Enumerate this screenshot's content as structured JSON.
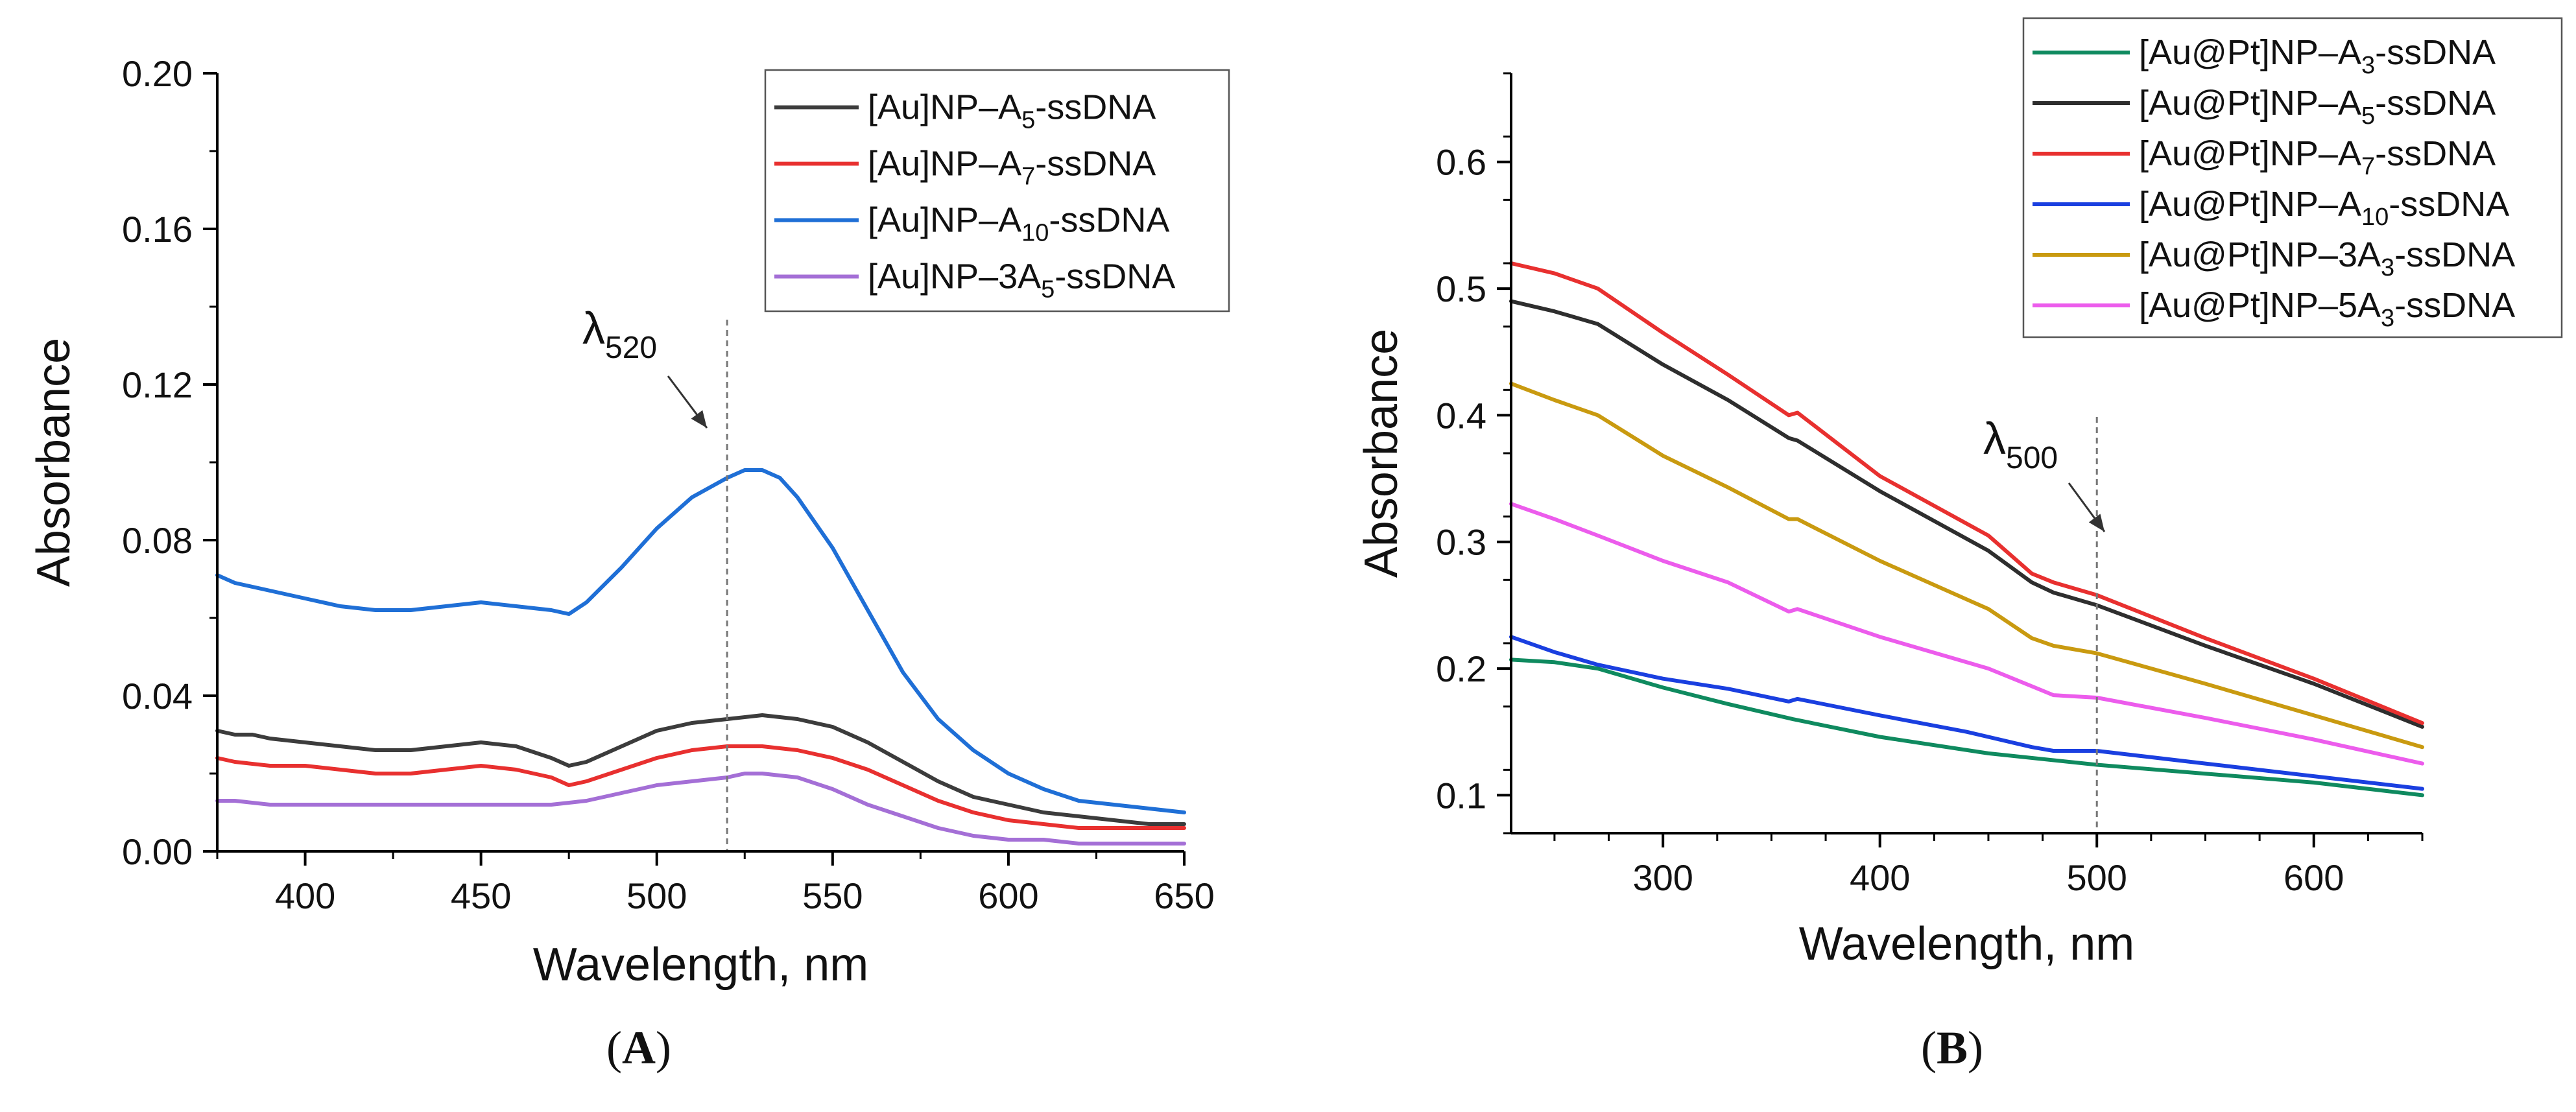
{
  "charts": {
    "A": {
      "panel_label": "A",
      "xlabel": "Wavelength, nm",
      "ylabel": "Absorbance",
      "annotation": {
        "symbol": "λ",
        "sub": "520"
      }
    },
    "B": {
      "panel_label": "B",
      "xlabel": "Wavelength, nm",
      "ylabel": "Absorbance",
      "annotation": {
        "symbol": "λ",
        "sub": "500"
      }
    }
  },
  "chart_data": [
    {
      "id": "A",
      "type": "line",
      "title": "",
      "xlabel": "Wavelength, nm",
      "ylabel": "Absorbance",
      "xlim": [
        375,
        650
      ],
      "ylim": [
        0,
        0.2
      ],
      "xticks": [
        400,
        450,
        500,
        550,
        600,
        650
      ],
      "yticks": [
        0.0,
        0.04,
        0.08,
        0.12,
        0.16,
        0.2
      ],
      "xtick_labels": [
        "400",
        "450",
        "500",
        "550",
        "600",
        "650"
      ],
      "ytick_labels": [
        "0.00",
        "0.04",
        "0.08",
        "0.12",
        "0.16",
        "0.20"
      ],
      "legend_position": "top-right",
      "marker_line_x": 520,
      "annotation_text": "λ520",
      "series": [
        {
          "name": "[Au]NP–A5-ssDNA",
          "label_main": "[Au]NP–A",
          "label_sub": "5",
          "label_end": "-ssDNA",
          "color": "#3c3c3c",
          "x": [
            375,
            380,
            385,
            390,
            400,
            410,
            420,
            430,
            440,
            450,
            460,
            470,
            475,
            480,
            490,
            500,
            510,
            520,
            530,
            540,
            550,
            560,
            570,
            580,
            590,
            600,
            610,
            620,
            630,
            640,
            650
          ],
          "y": [
            0.031,
            0.03,
            0.03,
            0.029,
            0.028,
            0.027,
            0.026,
            0.026,
            0.027,
            0.028,
            0.027,
            0.024,
            0.022,
            0.023,
            0.027,
            0.031,
            0.033,
            0.034,
            0.035,
            0.034,
            0.032,
            0.028,
            0.023,
            0.018,
            0.014,
            0.012,
            0.01,
            0.009,
            0.008,
            0.007,
            0.007
          ]
        },
        {
          "name": "[Au]NP–A7-ssDNA",
          "label_main": "[Au]NP–A",
          "label_sub": "7",
          "label_end": "-ssDNA",
          "color": "#e8302f",
          "x": [
            375,
            380,
            390,
            400,
            410,
            420,
            430,
            440,
            450,
            460,
            470,
            475,
            480,
            490,
            500,
            510,
            520,
            530,
            540,
            550,
            560,
            570,
            580,
            590,
            600,
            610,
            620,
            630,
            640,
            650
          ],
          "y": [
            0.024,
            0.023,
            0.022,
            0.022,
            0.021,
            0.02,
            0.02,
            0.021,
            0.022,
            0.021,
            0.019,
            0.017,
            0.018,
            0.021,
            0.024,
            0.026,
            0.027,
            0.027,
            0.026,
            0.024,
            0.021,
            0.017,
            0.013,
            0.01,
            0.008,
            0.007,
            0.006,
            0.006,
            0.006,
            0.006
          ]
        },
        {
          "name": "[Au]NP–A10-ssDNA",
          "label_main": "[Au]NP–A",
          "label_sub": "10",
          "label_end": "-ssDNA",
          "color": "#1f6fd6",
          "x": [
            375,
            380,
            390,
            400,
            410,
            420,
            430,
            440,
            450,
            460,
            470,
            475,
            480,
            490,
            500,
            510,
            520,
            525,
            530,
            535,
            540,
            550,
            560,
            570,
            580,
            590,
            600,
            610,
            620,
            630,
            640,
            650
          ],
          "y": [
            0.071,
            0.069,
            0.067,
            0.065,
            0.063,
            0.062,
            0.062,
            0.063,
            0.064,
            0.063,
            0.062,
            0.061,
            0.064,
            0.073,
            0.083,
            0.091,
            0.096,
            0.098,
            0.098,
            0.096,
            0.091,
            0.078,
            0.062,
            0.046,
            0.034,
            0.026,
            0.02,
            0.016,
            0.013,
            0.012,
            0.011,
            0.01
          ]
        },
        {
          "name": "[Au]NP–3A5-ssDNA",
          "label_main": "[Au]NP–3A",
          "label_sub": "5",
          "label_end": "-ssDNA",
          "color": "#a46fd6",
          "x": [
            375,
            380,
            390,
            400,
            410,
            420,
            430,
            440,
            450,
            460,
            470,
            480,
            490,
            500,
            510,
            520,
            525,
            530,
            540,
            550,
            560,
            570,
            580,
            590,
            600,
            610,
            620,
            630,
            640,
            650
          ],
          "y": [
            0.013,
            0.013,
            0.012,
            0.012,
            0.012,
            0.012,
            0.012,
            0.012,
            0.012,
            0.012,
            0.012,
            0.013,
            0.015,
            0.017,
            0.018,
            0.019,
            0.02,
            0.02,
            0.019,
            0.016,
            0.012,
            0.009,
            0.006,
            0.004,
            0.003,
            0.003,
            0.002,
            0.002,
            0.002,
            0.002
          ]
        }
      ]
    },
    {
      "id": "B",
      "type": "line",
      "title": "",
      "xlabel": "Wavelength, nm",
      "ylabel": "Absorbance",
      "xlim": [
        230,
        650
      ],
      "ylim": [
        0.07,
        0.67
      ],
      "xticks": [
        300,
        400,
        500,
        600
      ],
      "yticks": [
        0.1,
        0.2,
        0.3,
        0.4,
        0.5,
        0.6
      ],
      "xtick_labels": [
        "300",
        "400",
        "500",
        "600"
      ],
      "ytick_labels": [
        "0.1",
        "0.2",
        "0.3",
        "0.4",
        "0.5",
        "0.6"
      ],
      "legend_position": "top-right",
      "marker_line_x": 500,
      "annotation_text": "λ500",
      "series": [
        {
          "name": "[Au@Pt]NP–A3-ssDNA",
          "label_main": "[Au@Pt]NP–A",
          "label_sub": "3",
          "label_end": "-ssDNA",
          "color": "#0f8a5f",
          "x": [
            230,
            250,
            270,
            300,
            330,
            360,
            400,
            450,
            500,
            550,
            600,
            650
          ],
          "y": [
            0.207,
            0.205,
            0.2,
            0.185,
            0.172,
            0.16,
            0.146,
            0.133,
            0.124,
            0.117,
            0.11,
            0.1
          ]
        },
        {
          "name": "[Au@Pt]NP–A5-ssDNA",
          "label_main": "[Au@Pt]NP–A",
          "label_sub": "5",
          "label_end": "-ssDNA",
          "color": "#2e2e2e",
          "x": [
            230,
            250,
            270,
            300,
            330,
            358,
            362,
            400,
            450,
            470,
            480,
            500,
            550,
            600,
            650
          ],
          "y": [
            0.49,
            0.482,
            0.472,
            0.44,
            0.412,
            0.382,
            0.38,
            0.34,
            0.293,
            0.268,
            0.26,
            0.25,
            0.218,
            0.188,
            0.154
          ]
        },
        {
          "name": "[Au@Pt]NP–A7-ssDNA",
          "label_main": "[Au@Pt]NP–A",
          "label_sub": "7",
          "label_end": "-ssDNA",
          "color": "#e8302f",
          "x": [
            230,
            250,
            270,
            300,
            330,
            358,
            362,
            400,
            450,
            470,
            480,
            500,
            550,
            600,
            650
          ],
          "y": [
            0.52,
            0.512,
            0.5,
            0.465,
            0.432,
            0.4,
            0.402,
            0.352,
            0.305,
            0.275,
            0.268,
            0.258,
            0.224,
            0.192,
            0.157
          ]
        },
        {
          "name": "[Au@Pt]NP–A10-ssDNA",
          "label_main": "[Au@Pt]NP–A",
          "label_sub": "10",
          "label_end": "-ssDNA",
          "color": "#1a3fe0",
          "x": [
            230,
            250,
            270,
            300,
            330,
            358,
            362,
            400,
            440,
            470,
            480,
            500,
            550,
            600,
            650
          ],
          "y": [
            0.225,
            0.213,
            0.203,
            0.192,
            0.184,
            0.174,
            0.176,
            0.163,
            0.15,
            0.138,
            0.135,
            0.135,
            0.125,
            0.115,
            0.105
          ]
        },
        {
          "name": "[Au@Pt]NP–3A3-ssDNA",
          "label_main": "[Au@Pt]NP–3A",
          "label_sub": "3",
          "label_end": "-ssDNA",
          "color": "#c99a10",
          "x": [
            230,
            250,
            270,
            300,
            330,
            358,
            362,
            400,
            450,
            470,
            480,
            500,
            550,
            600,
            650
          ],
          "y": [
            0.425,
            0.412,
            0.4,
            0.368,
            0.343,
            0.318,
            0.318,
            0.285,
            0.247,
            0.224,
            0.218,
            0.212,
            0.188,
            0.163,
            0.138
          ]
        },
        {
          "name": "[Au@Pt]NP–5A3-ssDNA",
          "label_main": "[Au@Pt]NP–5A",
          "label_sub": "3",
          "label_end": "-ssDNA",
          "color": "#ec5cec",
          "x": [
            230,
            250,
            270,
            300,
            330,
            358,
            362,
            400,
            450,
            470,
            480,
            500,
            550,
            600,
            650
          ],
          "y": [
            0.33,
            0.318,
            0.305,
            0.285,
            0.268,
            0.245,
            0.247,
            0.225,
            0.2,
            0.186,
            0.179,
            0.177,
            0.161,
            0.144,
            0.125
          ]
        }
      ]
    }
  ]
}
